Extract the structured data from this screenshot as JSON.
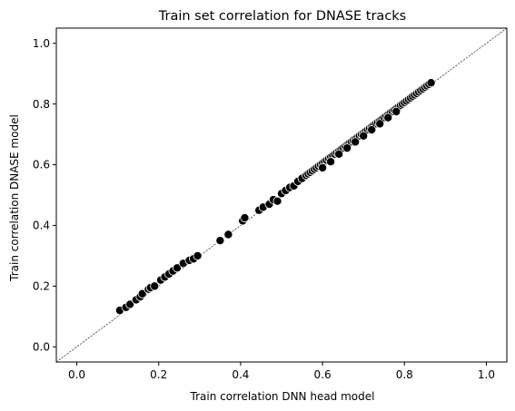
{
  "chart_data": {
    "type": "scatter",
    "title": "Train set correlation for DNASE tracks",
    "xlabel": "Train correlation DNN head model",
    "ylabel": "Train correlation DNASE model",
    "xlim": [
      -0.05,
      1.05
    ],
    "ylim": [
      -0.05,
      1.05
    ],
    "xticks": [
      "0.0",
      "0.2",
      "0.4",
      "0.6",
      "0.8",
      "1.0"
    ],
    "yticks": [
      "0.0",
      "0.2",
      "0.4",
      "0.6",
      "0.8",
      "1.0"
    ],
    "grid": false,
    "reference_line": {
      "from": [
        -0.05,
        -0.05
      ],
      "to": [
        1.05,
        1.05
      ],
      "style": "dashed",
      "color": "#000000"
    },
    "marker_color": "#000000",
    "marker_edge_color": "#ffffff",
    "series": [
      {
        "x": [
          0.105,
          0.12,
          0.13,
          0.145,
          0.155,
          0.16,
          0.175,
          0.18,
          0.19,
          0.205,
          0.215,
          0.225,
          0.235,
          0.245,
          0.26,
          0.275,
          0.285,
          0.295,
          0.35,
          0.37,
          0.405,
          0.41,
          0.445,
          0.455,
          0.47,
          0.48,
          0.49,
          0.5,
          0.51,
          0.52,
          0.53,
          0.54,
          0.55,
          0.56,
          0.565,
          0.57,
          0.575,
          0.58,
          0.585,
          0.59,
          0.595,
          0.6,
          0.605,
          0.61,
          0.615,
          0.62,
          0.625,
          0.63,
          0.635,
          0.64,
          0.645,
          0.65,
          0.655,
          0.66,
          0.665,
          0.67,
          0.675,
          0.68,
          0.685,
          0.69,
          0.695,
          0.7,
          0.705,
          0.71,
          0.715,
          0.72,
          0.725,
          0.73,
          0.735,
          0.74,
          0.745,
          0.75,
          0.755,
          0.76,
          0.765,
          0.77,
          0.775,
          0.78,
          0.785,
          0.79,
          0.795,
          0.8,
          0.805,
          0.81,
          0.815,
          0.82,
          0.825,
          0.83,
          0.835,
          0.84,
          0.845,
          0.85,
          0.855,
          0.86,
          0.865,
          0.6,
          0.62,
          0.64,
          0.66,
          0.68,
          0.7,
          0.72,
          0.74,
          0.76,
          0.78
        ],
        "y": [
          0.12,
          0.13,
          0.14,
          0.155,
          0.165,
          0.175,
          0.19,
          0.195,
          0.2,
          0.22,
          0.23,
          0.24,
          0.25,
          0.26,
          0.275,
          0.285,
          0.29,
          0.3,
          0.35,
          0.37,
          0.415,
          0.425,
          0.45,
          0.46,
          0.47,
          0.485,
          0.48,
          0.505,
          0.515,
          0.525,
          0.53,
          0.545,
          0.555,
          0.565,
          0.57,
          0.575,
          0.58,
          0.585,
          0.59,
          0.595,
          0.6,
          0.605,
          0.61,
          0.615,
          0.62,
          0.625,
          0.63,
          0.635,
          0.64,
          0.645,
          0.65,
          0.655,
          0.66,
          0.665,
          0.67,
          0.675,
          0.68,
          0.685,
          0.69,
          0.695,
          0.7,
          0.705,
          0.71,
          0.715,
          0.72,
          0.725,
          0.73,
          0.735,
          0.74,
          0.745,
          0.75,
          0.755,
          0.76,
          0.765,
          0.77,
          0.775,
          0.78,
          0.785,
          0.79,
          0.795,
          0.8,
          0.805,
          0.81,
          0.815,
          0.82,
          0.825,
          0.83,
          0.835,
          0.84,
          0.845,
          0.85,
          0.855,
          0.86,
          0.865,
          0.87,
          0.59,
          0.61,
          0.635,
          0.655,
          0.675,
          0.695,
          0.715,
          0.735,
          0.755,
          0.775
        ]
      }
    ]
  }
}
